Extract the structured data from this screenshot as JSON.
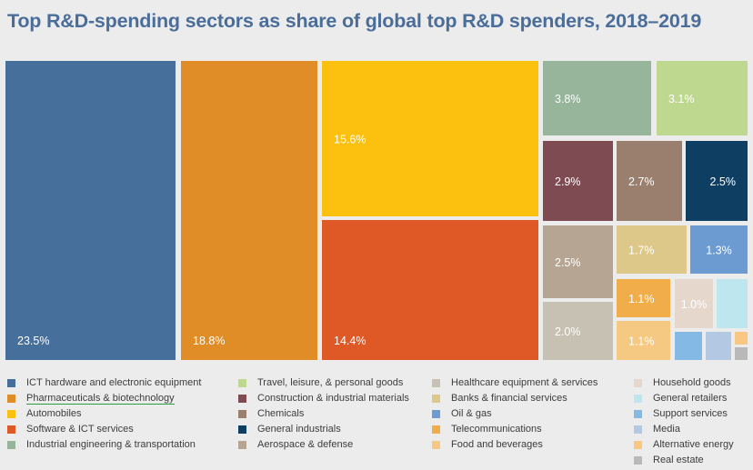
{
  "title": "Top R&D-spending sectors as share of global top R&D spenders, 2018–2019",
  "chart_data": {
    "type": "treemap",
    "title": "Top R&D-spending sectors as share of global top R&D spenders, 2018–2019",
    "legend_position": "bottom",
    "series": [
      {
        "name": "ICT hardware and electronic equipment",
        "value": 23.5,
        "label": "23.5%",
        "color": "#466f9c"
      },
      {
        "name": "Pharmaceuticals & biotechnology",
        "value": 18.8,
        "label": "18.8%",
        "color": "#e08c27"
      },
      {
        "name": "Automobiles",
        "value": 15.6,
        "label": "15.6%",
        "color": "#fcc00f"
      },
      {
        "name": "Software & ICT services",
        "value": 14.4,
        "label": "14.4%",
        "color": "#df5926"
      },
      {
        "name": "Industrial engineering & transportation",
        "value": 3.8,
        "label": "3.8%",
        "color": "#96b59b"
      },
      {
        "name": "Travel, leisure, & personal goods",
        "value": 3.1,
        "label": "3.1%",
        "color": "#bed98f"
      },
      {
        "name": "Construction & industrial materials",
        "value": 2.9,
        "label": "2.9%",
        "color": "#7f4b52"
      },
      {
        "name": "Chemicals",
        "value": 2.7,
        "label": "2.7%",
        "color": "#9a7f6e"
      },
      {
        "name": "General industrials",
        "value": 2.5,
        "label": "2.5%",
        "color": "#0e3e62"
      },
      {
        "name": "Aerospace & defense",
        "value": 2.5,
        "label": "2.5%",
        "color": "#b6a593"
      },
      {
        "name": "Healthcare equipment & services",
        "value": 2.0,
        "label": "2.0%",
        "color": "#c6c1b2"
      },
      {
        "name": "Banks & financial services",
        "value": 1.7,
        "label": "1.7%",
        "color": "#dec889"
      },
      {
        "name": "Oil & gas",
        "value": 1.3,
        "label": "1.3%",
        "color": "#6b9bd1"
      },
      {
        "name": "Telecommunications",
        "value": 1.1,
        "label": "1.1%",
        "color": "#f0ad4a"
      },
      {
        "name": "Food and beverages",
        "value": 1.1,
        "label": "1.1%",
        "color": "#f6c982"
      },
      {
        "name": "Household goods",
        "value": 1.0,
        "label": "1.0%",
        "color": "#e6d7cd"
      },
      {
        "name": "General retailers",
        "value": null,
        "label": "",
        "color": "#bee6ee"
      },
      {
        "name": "Support services",
        "value": null,
        "label": "",
        "color": "#84b9e6"
      },
      {
        "name": "Media",
        "value": null,
        "label": "",
        "color": "#b3c9e3"
      },
      {
        "name": "Alternative energy",
        "value": null,
        "label": "",
        "color": "#f8c784"
      },
      {
        "name": "Real estate",
        "value": null,
        "label": "",
        "color": "#b9b9b9"
      }
    ]
  }
}
